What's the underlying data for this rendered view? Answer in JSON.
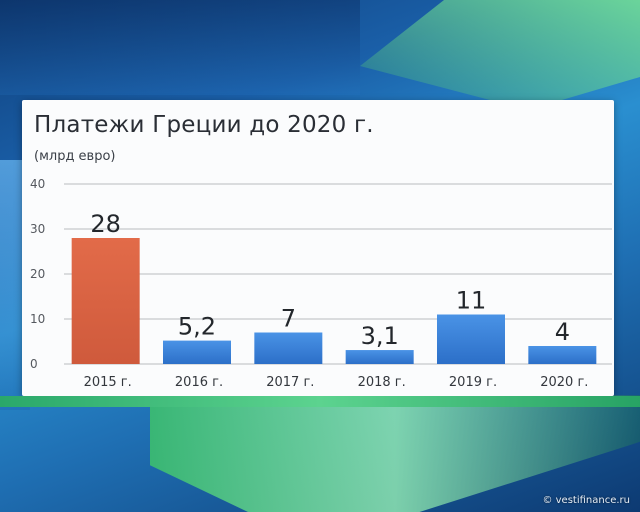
{
  "watermark": "© vestifinance.ru",
  "chart_data": {
    "type": "bar",
    "title": "Платежи Греции до 2020 г.",
    "subtitle": "(млрд евро)",
    "categories": [
      "2015 г.",
      "2016 г.",
      "2017 г.",
      "2018 г.",
      "2019 г.",
      "2020 г."
    ],
    "values": [
      28,
      5.2,
      7,
      3.1,
      11,
      4
    ],
    "value_labels": [
      "28",
      "5,2",
      "7",
      "3,1",
      "11",
      "4"
    ],
    "ylim": [
      0,
      40
    ],
    "yticks": [
      0,
      10,
      20,
      30,
      40
    ],
    "grid": true,
    "legend": "none",
    "colors": {
      "highlight": "#cf5a3c",
      "highlight_light": "#e26b49",
      "bar": "#2c6fc8",
      "bar_light": "#4a93e6"
    }
  }
}
